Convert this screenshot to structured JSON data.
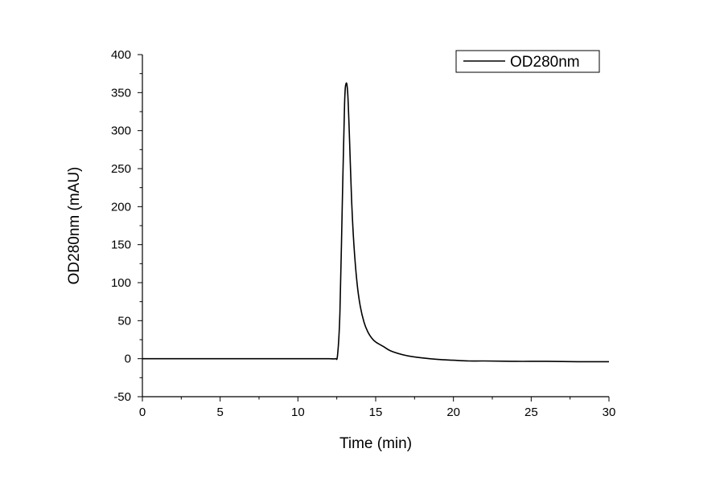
{
  "chart_data": {
    "type": "line",
    "xlabel": "Time (min)",
    "ylabel": "OD280nm (mAU)",
    "xlim": [
      0,
      30
    ],
    "ylim": [
      -50,
      400
    ],
    "xticks": [
      "0",
      "5",
      "10",
      "15",
      "20",
      "25",
      "30"
    ],
    "yticks": [
      "-50",
      "0",
      "50",
      "100",
      "150",
      "200",
      "250",
      "300",
      "350",
      "400"
    ],
    "grid": false,
    "legend_position": "top-right",
    "series": [
      {
        "name": "OD280nm",
        "color": "#000000",
        "x": [
          0,
          5,
          10,
          12.0,
          12.4,
          12.55,
          12.7,
          12.85,
          13.0,
          13.1,
          13.2,
          13.3,
          13.45,
          13.6,
          13.8,
          14.0,
          14.25,
          14.5,
          14.75,
          15.0,
          15.5,
          16.0,
          17.0,
          18.0,
          19.0,
          20.0,
          21.0,
          22.0,
          24.0,
          26.0,
          28.0,
          30.0
        ],
        "y": [
          0,
          0,
          0,
          0,
          0,
          5,
          60,
          200,
          335,
          362,
          350,
          300,
          210,
          150,
          100,
          70,
          48,
          35,
          27,
          22,
          16,
          10,
          4,
          1,
          -1,
          -2,
          -3,
          -3,
          -3.5,
          -3.5,
          -4,
          -4
        ]
      }
    ]
  }
}
